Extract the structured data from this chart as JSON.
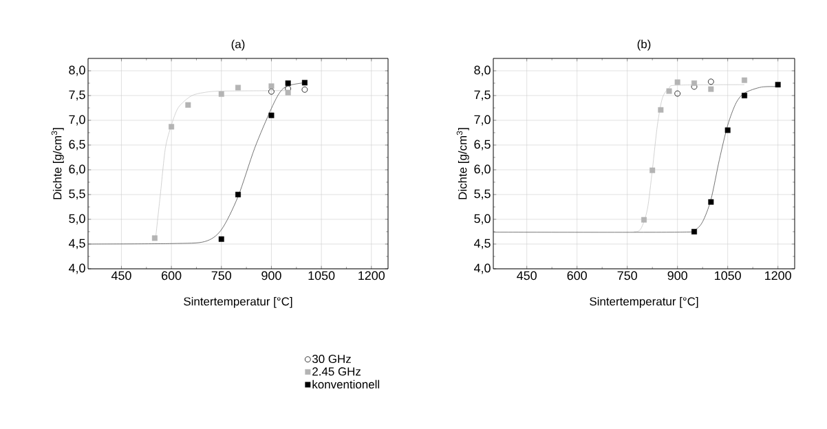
{
  "chart_data": [
    {
      "type": "scatter",
      "title": "(a)",
      "xlabel": "Sintertemperatur [°C]",
      "ylabel": "Dichte [g/cm$^{3}$]",
      "xlim": [
        350,
        1250
      ],
      "ylim": [
        4.0,
        8.25
      ],
      "xticks": [
        450,
        600,
        750,
        900,
        1050,
        1200
      ],
      "yticks": [
        {
          "value": 4.0,
          "label": "4,0"
        },
        {
          "value": 4.5,
          "label": "4,5"
        },
        {
          "value": 5.0,
          "label": "5,0"
        },
        {
          "value": 5.5,
          "label": "5,5"
        },
        {
          "value": 6.0,
          "label": "6,0"
        },
        {
          "value": 6.5,
          "label": "6,5"
        },
        {
          "value": 7.0,
          "label": "7,0"
        },
        {
          "value": 7.5,
          "label": "7,5"
        },
        {
          "value": 8.0,
          "label": "8,0"
        }
      ],
      "grid": true,
      "legend": "bottom",
      "series": [
        {
          "type": "line",
          "marker": "none",
          "color": "#c8c8c8",
          "x": [
            552,
            567,
            582,
            600,
            621,
            659,
            697,
            750,
            950
          ],
          "values": [
            4.58,
            5.51,
            6.44,
            6.9,
            7.26,
            7.49,
            7.56,
            7.59,
            7.6
          ]
        },
        {
          "type": "line",
          "marker": "none",
          "color": "#505050",
          "x": [
            350,
            600,
            700,
            750,
            800,
            850,
            900,
            926,
            950,
            1000
          ],
          "values": [
            4.5,
            4.51,
            4.55,
            4.79,
            5.46,
            6.44,
            7.24,
            7.57,
            7.7,
            7.76
          ]
        },
        {
          "name": "30 GHz",
          "marker": "circle",
          "color": "#000000",
          "x": [
            900,
            950,
            1000
          ],
          "values": [
            7.58,
            7.64,
            7.62
          ]
        },
        {
          "name": "2.45 GHz",
          "marker": "square",
          "color": "#b4b4b4",
          "x": [
            550,
            600,
            650,
            750,
            800,
            900,
            950
          ],
          "values": [
            4.62,
            6.87,
            7.31,
            7.53,
            7.66,
            7.69,
            7.56
          ]
        },
        {
          "name": "konventionell",
          "marker": "square",
          "color": "#000000",
          "x": [
            750,
            800,
            900,
            950,
            1000
          ],
          "values": [
            4.6,
            5.5,
            7.1,
            7.75,
            7.76
          ]
        }
      ]
    },
    {
      "type": "scatter",
      "title": "(b)",
      "xlabel": "Sintertemperatur [°C]",
      "ylabel": "Dichte [g/cm$^{3}$]",
      "xlim": [
        350,
        1250
      ],
      "ylim": [
        4.0,
        8.25
      ],
      "xticks": [
        450,
        600,
        750,
        900,
        1050,
        1200
      ],
      "yticks": [
        {
          "value": 4.0,
          "label": "4,0"
        },
        {
          "value": 4.5,
          "label": "4,5"
        },
        {
          "value": 5.0,
          "label": "5,0"
        },
        {
          "value": 5.5,
          "label": "5,5"
        },
        {
          "value": 6.0,
          "label": "6,0"
        },
        {
          "value": 6.5,
          "label": "6,5"
        },
        {
          "value": 7.0,
          "label": "7,0"
        },
        {
          "value": 7.5,
          "label": "7,5"
        },
        {
          "value": 8.0,
          "label": "8,0"
        }
      ],
      "grid": true,
      "series": [
        {
          "type": "line",
          "marker": "none",
          "color": "#c8c8c8",
          "x": [
            770,
            790,
            810,
            825,
            840,
            855,
            875,
            900,
            1100
          ],
          "values": [
            4.75,
            4.8,
            5.2,
            6.0,
            6.9,
            7.45,
            7.65,
            7.71,
            7.72
          ]
        },
        {
          "type": "line",
          "marker": "none",
          "color": "#505050",
          "x": [
            350,
            900,
            950,
            975,
            1000,
            1025,
            1050,
            1075,
            1100,
            1150,
            1200
          ],
          "values": [
            4.74,
            4.74,
            4.78,
            4.95,
            5.4,
            6.2,
            6.9,
            7.35,
            7.55,
            7.67,
            7.68
          ]
        },
        {
          "marker": "circle",
          "color": "#000000",
          "x": [
            900,
            950,
            1000
          ],
          "values": [
            7.54,
            7.68,
            7.78
          ]
        },
        {
          "marker": "square",
          "color": "#b4b4b4",
          "x": [
            800,
            825,
            850,
            875,
            900,
            950,
            1000,
            1100
          ],
          "values": [
            4.99,
            5.99,
            7.21,
            7.59,
            7.77,
            7.75,
            7.63,
            7.81
          ]
        },
        {
          "marker": "square",
          "color": "#000000",
          "x": [
            950,
            1000,
            1050,
            1100,
            1200
          ],
          "values": [
            4.75,
            5.35,
            6.8,
            7.5,
            7.72
          ]
        }
      ]
    }
  ]
}
